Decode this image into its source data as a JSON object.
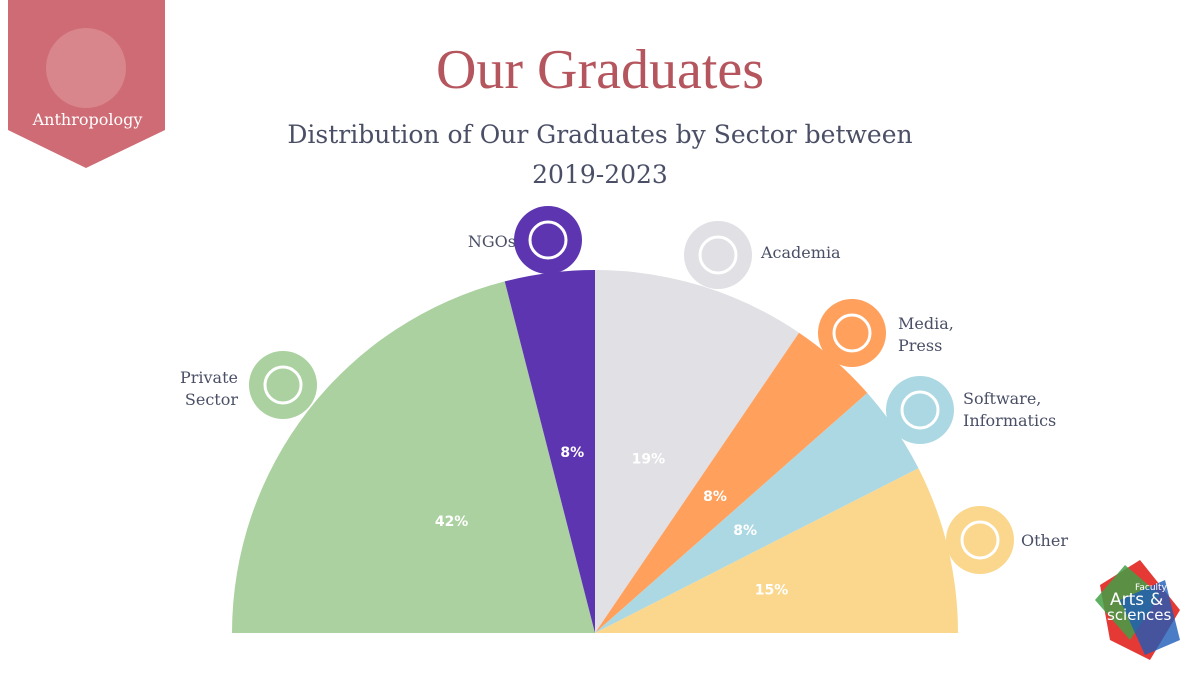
{
  "badge": {
    "label": "Anthropology"
  },
  "logo": {
    "line1": "Faculty",
    "line2": "Arts",
    "line3": "&",
    "line4": "sciences"
  },
  "chart_data": {
    "type": "half-pie",
    "title": "Our Graduates",
    "subtitle": "Distribution of Our Graduates by Sector between 2019-2023",
    "categories": [
      "Private Sector",
      "NGOs",
      "Academia",
      "Media, Press",
      "Software, Informatics",
      "Other"
    ],
    "values": [
      42,
      8,
      19,
      8,
      8,
      15
    ],
    "value_labels": [
      "42%",
      "8%",
      "19%",
      "8%",
      "8%",
      "15%"
    ],
    "colors": [
      "#aad19f",
      "#5e35b1",
      "#e0e0e5",
      "#ffa05c",
      "#acd8e3",
      "#fad78d"
    ]
  }
}
